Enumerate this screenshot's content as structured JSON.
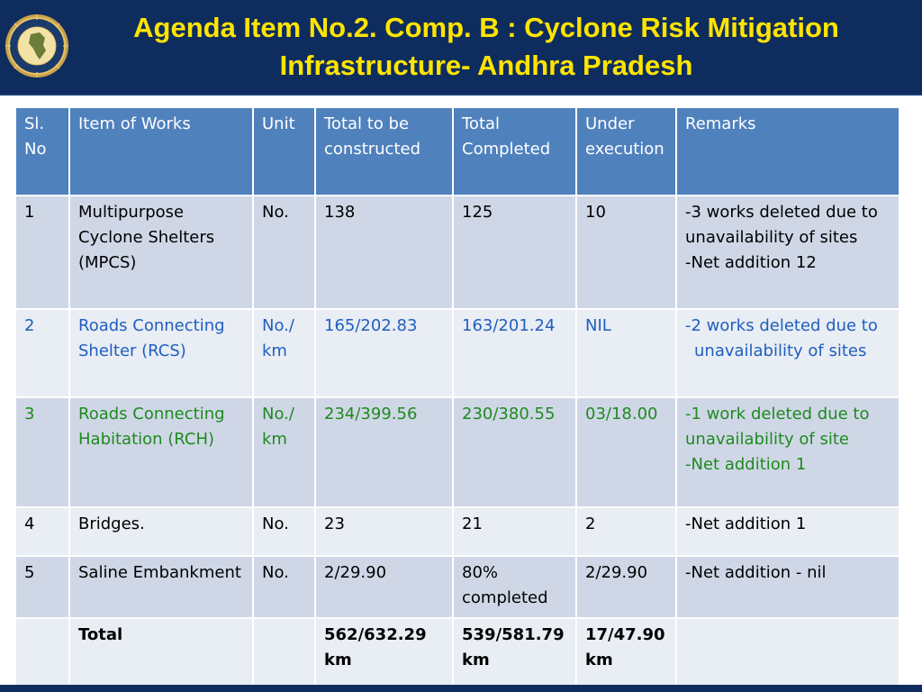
{
  "title": {
    "line1": "Agenda Item No.2. Comp. B : Cyclone Risk Mitigation",
    "line2": "Infrastructure- Andhra Pradesh"
  },
  "logo": {
    "icon": "ndma-emblem-icon"
  },
  "table": {
    "headers": [
      "Sl. No",
      "Item of Works",
      "Unit",
      "Total to be constructed",
      "Total Completed",
      "Under execution",
      "Remarks"
    ],
    "rows": [
      {
        "sl": "1",
        "item": "Multipurpose Cyclone Shelters (MPCS)",
        "unit": "No.",
        "total": "138",
        "completed": "125",
        "under_execution": "10",
        "remarks": [
          "-3 works deleted due to unavailability of sites",
          "-Net addition 12"
        ]
      },
      {
        "sl": "2",
        "item": "Roads Connecting Shelter (RCS)",
        "unit": "No./ km",
        "total": "165/202.83",
        "completed": "163/201.24",
        "under_execution": "NIL",
        "remarks": [
          "-2 works deleted due to",
          "unavailability of sites"
        ]
      },
      {
        "sl": "3",
        "item": "Roads Connecting Habitation (RCH)",
        "unit": "No./ km",
        "total": "234/399.56",
        "completed": "230/380.55",
        "under_execution": "03/18.00",
        "remarks": [
          "-1 work deleted due to unavailability of site",
          "-Net addition 1"
        ]
      },
      {
        "sl": "4",
        "item": "Bridges.",
        "unit": "No.",
        "total": "23",
        "completed": "21",
        "under_execution": "2",
        "remarks": [
          "-Net addition 1"
        ]
      },
      {
        "sl": "5",
        "item": "Saline Embankment",
        "unit": "No.",
        "total": "2/29.90",
        "completed": "80% completed",
        "under_execution": "2/29.90",
        "remarks": [
          "-Net addition - nil"
        ]
      },
      {
        "sl": "",
        "item": "Total",
        "unit": "",
        "total": "562/632.29 km",
        "completed": "539/581.79 km",
        "under_execution": "17/47.90 km",
        "remarks": []
      }
    ]
  },
  "colors": {
    "header_bg": "#0e2d5e",
    "title_yellow": "#ffe400",
    "table_header_bg": "#4f81bd",
    "row_dark": "#cfd7e7",
    "row_light": "#e9edf4",
    "row2_text": "#1f5fbf",
    "row3_text": "#1e8a1e"
  }
}
